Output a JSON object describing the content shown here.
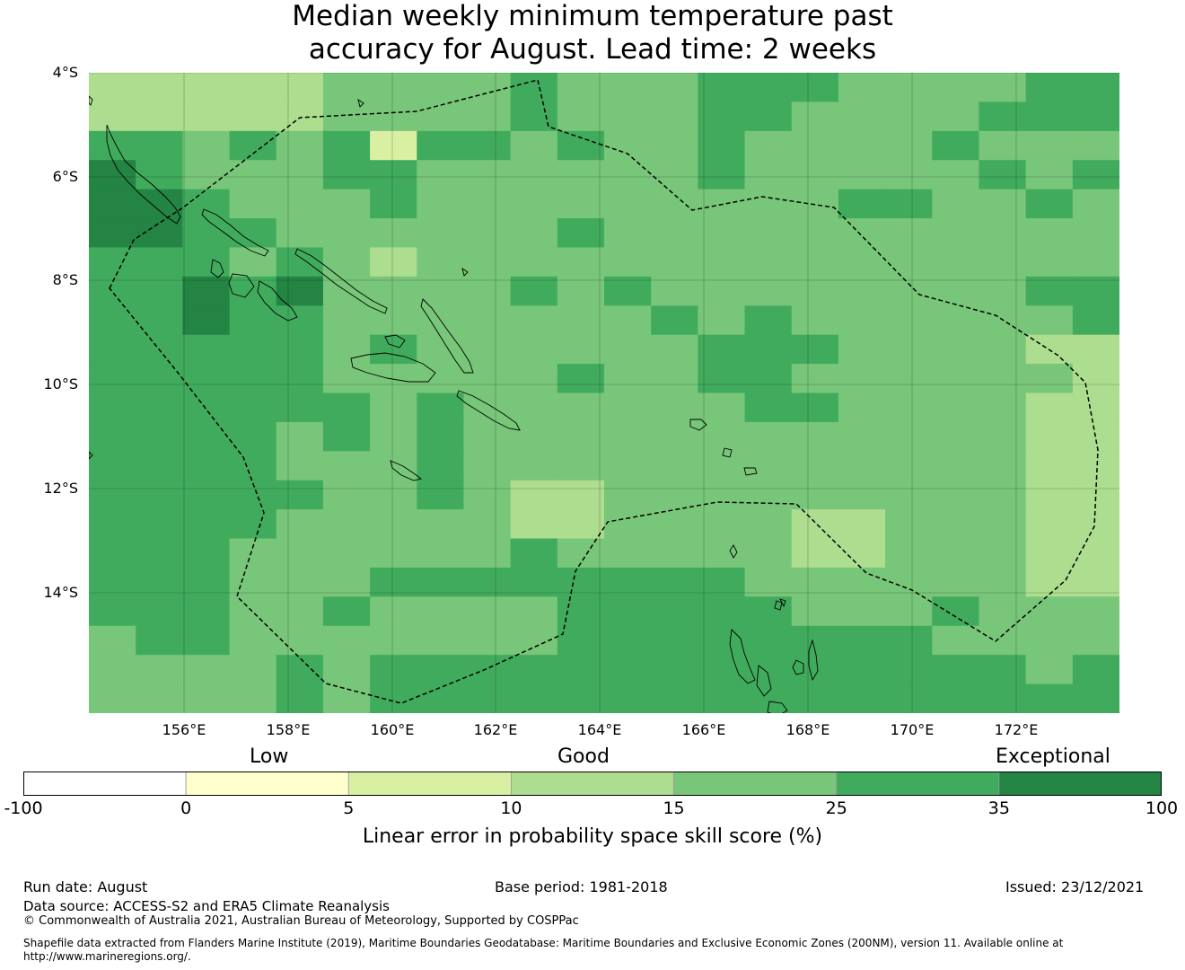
{
  "title": {
    "line1": "Median weekly minimum temperature past",
    "line2": "accuracy for August. Lead time: 2 weeks"
  },
  "map": {
    "lat_labels": [
      "4°S",
      "6°S",
      "8°S",
      "10°S",
      "12°S",
      "14°S"
    ],
    "lon_labels": [
      "156°E",
      "158°E",
      "160°E",
      "162°E",
      "164°E",
      "166°E",
      "168°E",
      "170°E",
      "172°E"
    ],
    "colors": {
      "0-5": "#ffffcc",
      "5-10": "#d9f0a3",
      "10-15": "#addd8e",
      "15-25": "#78c679",
      "25-35": "#41ab5d",
      "35-100": "#238443",
      "coast": "#000000",
      "boundary": "#000000"
    },
    "grid_classes": [
      "2222233334333444333344",
      "2222233334333443333444",
      "4434341443433433334333",
      "5433344333333433333434",
      "5543334333333333443343",
      "5544333333433333333333",
      "4443432333333333333333",
      "4454533334343333333344",
      "4454433333334343333334",
      "4444434333333444333322",
      "4444433333433443333332",
      "4444443433333344333322",
      "4444343433333333333322",
      "4444333433333333333322",
      "4444433432233333333322",
      "4444333332233332233322",
      "4443333334333332233322",
      "4443334444444433333322",
      "4443343333444443334333",
      "3443333333444444443333",
      "3333434444444444444434",
      "3333434444444444444444"
    ]
  },
  "colorbar": {
    "category_low": "Low",
    "category_good": "Good",
    "category_exceptional": "Exceptional",
    "ticks": [
      "-100",
      "0",
      "5",
      "10",
      "15",
      "25",
      "35",
      "100"
    ],
    "colors": [
      "#ffffff",
      "#ffffcc",
      "#d9f0a3",
      "#addd8e",
      "#78c679",
      "#41ab5d",
      "#238443"
    ],
    "label": "Linear error in probability space skill score (%)"
  },
  "footer": {
    "run_date": "Run date: August",
    "base_period": "Base period: 1981-2018",
    "issued": "Issued: 23/12/2021",
    "data_source": "Data source: ACCESS-S2 and ERA5 Climate Reanalysis",
    "copyright": "© Commonwealth of Australia 2021, Australian Bureau of Meteorology, Supported by COSPPac",
    "shapefile_line1": "Shapefile data extracted from Flanders Marine Institute (2019), Maritime Boundaries Geodatabase: Maritime Boundaries and Exclusive Economic Zones (200NM), version 11. Available online at",
    "shapefile_line2": "http://www.marineregions.org/."
  }
}
